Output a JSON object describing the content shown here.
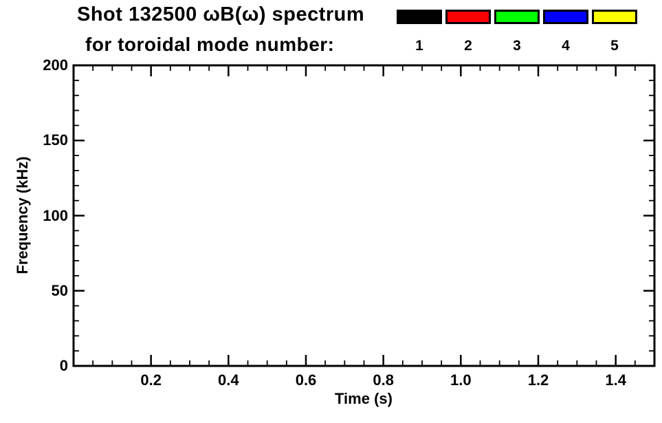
{
  "chart_data": {
    "type": "heatmap",
    "title": "Shot 132500 ωB(ω) spectrum",
    "subtitle": "for toroidal mode number:",
    "xlabel": "Time (s)",
    "ylabel": "Frequency (kHz)",
    "xlim": [
      0.0,
      1.5
    ],
    "ylim": [
      0,
      200
    ],
    "x_tick_values": [
      0.2,
      0.4,
      0.6,
      0.8,
      1.0,
      1.2,
      1.4
    ],
    "x_tick_labels": [
      "0.2",
      "0.4",
      "0.6",
      "0.8",
      "1.0",
      "1.2",
      "1.4"
    ],
    "x_minor_step": 0.05,
    "y_tick_values": [
      0,
      50,
      100,
      150,
      200
    ],
    "y_tick_labels": [
      "0",
      "50",
      "100",
      "150",
      "200"
    ],
    "y_minor_step": 10,
    "grid": false,
    "legend_position": "top",
    "legend": [
      {
        "label": "1",
        "color": "#000000"
      },
      {
        "label": "2",
        "color": "#ff0000"
      },
      {
        "label": "3",
        "color": "#00ff00"
      },
      {
        "label": "4",
        "color": "#0000ff"
      },
      {
        "label": "5",
        "color": "#ffff00"
      }
    ],
    "values": [],
    "axis_color": "#000000",
    "background_color": "#ffffff"
  }
}
